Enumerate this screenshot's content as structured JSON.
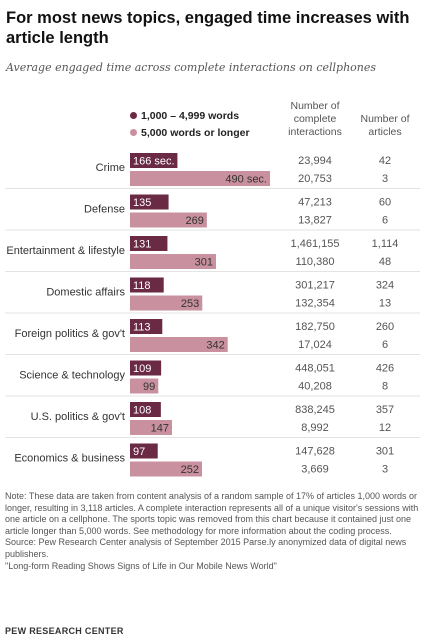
{
  "title": "For most news topics, engaged time increases with article length",
  "subtitle": "Average engaged time across complete interactions on cellphones",
  "legend": {
    "series1": "1,000 – 4,999 words",
    "series2": "5,000 words or longer"
  },
  "columns": {
    "interactions": "Number of complete interactions",
    "articles": "Number of articles"
  },
  "colors": {
    "short": "#6b2a44",
    "long": "#c9909f"
  },
  "chart_data": {
    "type": "bar",
    "orientation": "horizontal",
    "categories": [
      "Crime",
      "Defense",
      "Entertainment & lifestyle",
      "Domestic affairs",
      "Foreign politics & gov't",
      "Science & technology",
      "U.S. politics & gov't",
      "Economics & business"
    ],
    "series": [
      {
        "name": "1,000 – 4,999 words",
        "values": [
          166,
          135,
          131,
          118,
          113,
          109,
          108,
          97
        ],
        "labels": [
          "166 sec.",
          "135",
          "131",
          "118",
          "113",
          "109",
          "108",
          "97"
        ],
        "interactions": [
          "23,994",
          "47,213",
          "1,461,155",
          "301,217",
          "182,750",
          "448,051",
          "838,245",
          "147,628"
        ],
        "articles": [
          "42",
          "60",
          "1,114",
          "324",
          "260",
          "426",
          "357",
          "301"
        ]
      },
      {
        "name": "5,000 words or longer",
        "values": [
          490,
          269,
          301,
          253,
          342,
          99,
          147,
          252
        ],
        "labels": [
          "490 sec.",
          "269",
          "301",
          "253",
          "342",
          "99",
          "147",
          "252"
        ],
        "interactions": [
          "20,753",
          "13,827",
          "110,380",
          "132,354",
          "17,024",
          "40,208",
          "8,992",
          "3,669"
        ],
        "articles": [
          "3",
          "6",
          "48",
          "13",
          "6",
          "8",
          "12",
          "3"
        ]
      }
    ],
    "xlim": [
      0,
      490
    ],
    "grid": false
  },
  "note": "Note: These data are taken from content analysis of a random sample of 17% of articles 1,000 words or longer, resulting in 3,118 articles. A complete interaction represents all of a unique visitor's sessions with one article on a cellphone. The sports topic was removed from this chart because it contained just one article longer than 5,000 words. See methodology for more information about the coding process.",
  "source": "Source: Pew Research Center analysis of September 2015 Parse.ly anonymized data of digital news publishers.",
  "report": "\"Long-form Reading Shows Signs of Life in Our Mobile News World\"",
  "brand": "PEW RESEARCH CENTER"
}
